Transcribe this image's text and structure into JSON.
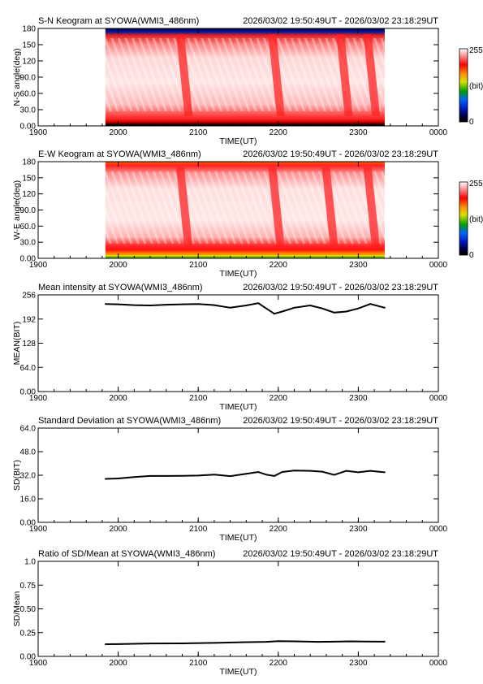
{
  "chart_data": [
    {
      "type": "heatmap",
      "title": "S-N Keogram at SYOWA(WMI3_486nm)",
      "subtitle": "2026/03/02 19:50:49UT - 2026/03/02 23:18:29UT",
      "xlabel": "TIME(UT)",
      "ylabel": "N-S angle(deg)",
      "xlim": [
        1900,
        2400
      ],
      "x_ticks": [
        "1900",
        "2000",
        "2100",
        "2200",
        "2300",
        "0000"
      ],
      "ylim": [
        0,
        180
      ],
      "y_ticks": [
        "0.00",
        "30.0",
        "60.0",
        "90.0",
        "120",
        "150",
        "180"
      ],
      "data_start": 1984,
      "data_end": 2333,
      "colorbar": {
        "min_label": "0",
        "mid_label": "(bit)",
        "max_label": "255"
      },
      "bright_bands": [
        2083,
        2198,
        2283,
        2317
      ]
    },
    {
      "type": "heatmap",
      "title": "E-W Keogram at SYOWA(WMI3_486nm)",
      "subtitle": "2026/03/02 19:50:49UT - 2026/03/02 23:18:29UT",
      "xlabel": "TIME(UT)",
      "ylabel": "W-E angle(deg)",
      "xlim": [
        1900,
        2400
      ],
      "x_ticks": [
        "1900",
        "2000",
        "2100",
        "2200",
        "2300",
        "0000"
      ],
      "ylim": [
        0,
        180
      ],
      "y_ticks": [
        "0.00",
        "30.0",
        "60.0",
        "90.0",
        "120",
        "150",
        "180"
      ],
      "data_start": 1984,
      "data_end": 2333,
      "colorbar": {
        "min_label": "0",
        "mid_label": "(bit)",
        "max_label": "255"
      },
      "bright_bands": [
        2083,
        2198,
        2265,
        2317
      ]
    },
    {
      "type": "line",
      "title": "Mean intensity at SYOWA(WMI3_486nm)",
      "subtitle": "2026/03/02 19:50:49UT - 2026/03/02 23:18:29UT",
      "xlabel": "TIME(UT)",
      "ylabel": "MEAN(BIT)",
      "xlim": [
        1900,
        2400
      ],
      "x_ticks": [
        "1900",
        "2000",
        "2100",
        "2200",
        "2300",
        "0000"
      ],
      "ylim": [
        0,
        256
      ],
      "y_ticks": [
        "0.00",
        "64.0",
        "128",
        "192",
        "256"
      ],
      "x": [
        1984,
        2000,
        2020,
        2040,
        2060,
        2080,
        2100,
        2120,
        2140,
        2160,
        2175,
        2185,
        2195,
        2205,
        2220,
        2240,
        2255,
        2270,
        2285,
        2300,
        2315,
        2333
      ],
      "y": [
        232,
        231,
        229,
        228,
        230,
        231,
        232,
        229,
        222,
        228,
        234,
        220,
        206,
        212,
        222,
        228,
        220,
        209,
        212,
        220,
        232,
        222
      ]
    },
    {
      "type": "line",
      "title": "Standard Deviation at SYOWA(WMI3_486nm)",
      "subtitle": "2026/03/02 19:50:49UT - 2026/03/02 23:18:29UT",
      "xlabel": "TIME(UT)",
      "ylabel": "SD(BIT)",
      "xlim": [
        1900,
        2400
      ],
      "x_ticks": [
        "1900",
        "2000",
        "2100",
        "2200",
        "2300",
        "0000"
      ],
      "ylim": [
        0,
        64
      ],
      "y_ticks": [
        "0.00",
        "16.0",
        "32.0",
        "48.0",
        "64.0"
      ],
      "x": [
        1984,
        2000,
        2020,
        2040,
        2060,
        2080,
        2100,
        2120,
        2140,
        2160,
        2175,
        2185,
        2195,
        2205,
        2220,
        2240,
        2255,
        2270,
        2285,
        2300,
        2315,
        2333
      ],
      "y": [
        29.5,
        29.8,
        30.8,
        31.5,
        31.5,
        31.6,
        31.8,
        32.4,
        31.4,
        33.0,
        34.2,
        32.4,
        31.5,
        34.2,
        35.2,
        35.0,
        34.4,
        32.2,
        35.0,
        34.0,
        35.0,
        34.0
      ]
    },
    {
      "type": "line",
      "title": "Ratio of SD/Mean at SYOWA(WMI3_486nm)",
      "subtitle": "2026/03/02 19:50:49UT - 2026/03/02 23:18:29UT",
      "xlabel": "TIME(UT)",
      "ylabel": "SD/Mean",
      "xlim": [
        1900,
        2400
      ],
      "x_ticks": [
        "1900",
        "2000",
        "2100",
        "2200",
        "2300",
        "0000"
      ],
      "ylim": [
        0,
        1.0
      ],
      "y_ticks": [
        "0.00",
        "0.25",
        "0.50",
        "0.75",
        "1.0"
      ],
      "x": [
        1984,
        2000,
        2040,
        2080,
        2120,
        2160,
        2185,
        2200,
        2220,
        2250,
        2270,
        2290,
        2310,
        2333
      ],
      "y": [
        0.128,
        0.129,
        0.136,
        0.137,
        0.142,
        0.15,
        0.153,
        0.16,
        0.158,
        0.153,
        0.155,
        0.158,
        0.156,
        0.155
      ]
    }
  ]
}
